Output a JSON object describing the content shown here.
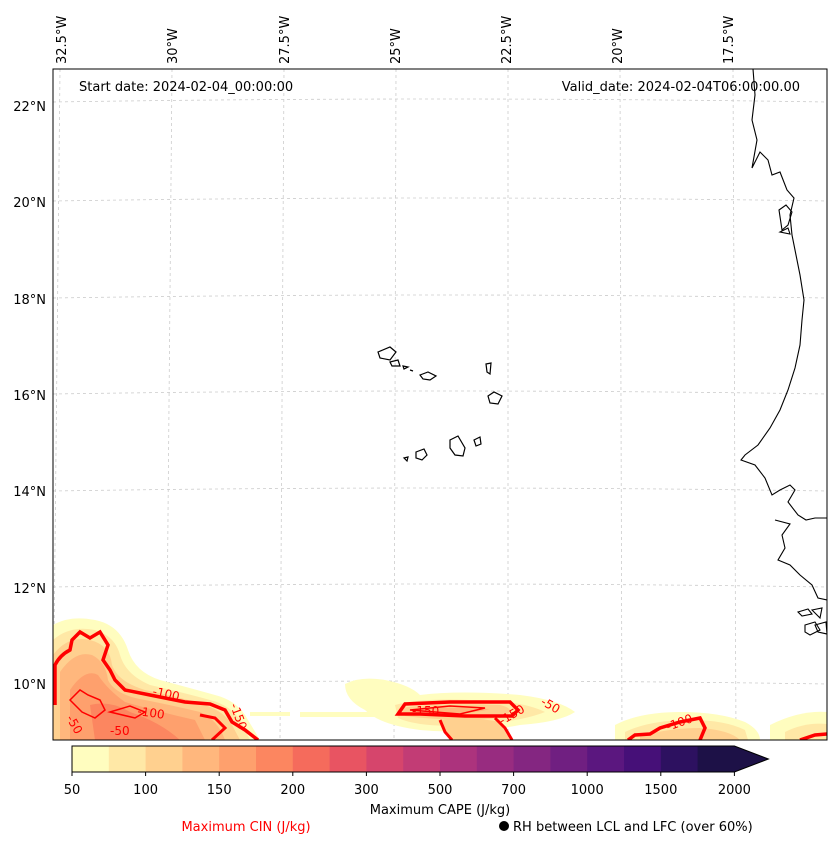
{
  "map": {
    "start_date_text": "Start date: 2024-02-04_00:00:00",
    "valid_date_text": "Valid_date: 2024-02-04T06:00:00.00",
    "lon_labels": [
      "32.5°W",
      "30°W",
      "27.5°W",
      "25°W",
      "22.5°W",
      "20°W",
      "17.5°W"
    ],
    "lat_labels": [
      "22°N",
      "20°N",
      "18°N",
      "16°N",
      "14°N",
      "12°N",
      "10°N"
    ],
    "cin_contour_labels": [
      "-100",
      "-100",
      "-150",
      "-50",
      "-150",
      "-150",
      "-50",
      "-100",
      "-50"
    ]
  },
  "colorbar": {
    "tick_labels": [
      "50",
      "100",
      "150",
      "200",
      "300",
      "500",
      "700",
      "1000",
      "1500",
      "2000"
    ],
    "colors": [
      "#fffdbf",
      "#ffe8a6",
      "#ffd08f",
      "#ffb77d",
      "#fea06d",
      "#fc8660",
      "#f56b5c",
      "#e85462",
      "#d6456c",
      "#c23c75",
      "#ac337d",
      "#982c80",
      "#842681",
      "#701f81",
      "#5b177f",
      "#461078",
      "#2d1160",
      "#1d1147"
    ],
    "label": "Maximum CAPE (J/kg)"
  },
  "legend": {
    "cin_label": "Maximum CIN (J/kg)",
    "cin_color": "#ff0000",
    "rh_label": "RH between LCL and LFC (over 60%)",
    "rh_marker": "black-dot-icon"
  }
}
